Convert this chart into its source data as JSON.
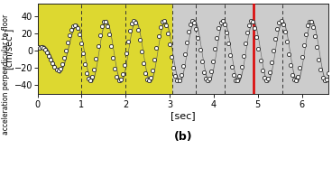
{
  "title": "",
  "xlabel": "[sec]",
  "ylabel": "[cm/sec²]",
  "ylabel2": "acceleration perpendicular to floor",
  "xlim": [
    0,
    6.6
  ],
  "ylim": [
    -50,
    55
  ],
  "yticks": [
    -40,
    -20,
    0,
    20,
    40
  ],
  "xticks": [
    0,
    1,
    2,
    3,
    4,
    5,
    6
  ],
  "yellow_region": [
    0,
    3.05
  ],
  "gray_region": [
    3.05,
    6.6
  ],
  "red_line_x": 4.9,
  "dashed_lines": [
    1.0,
    2.0,
    3.05,
    3.6,
    4.25,
    4.9,
    5.55
  ],
  "label_b": "(b)",
  "bg_color": "#ffffff",
  "yellow_color": "#ddd830",
  "gray_color": "#cccccc",
  "circle_facecolor": "#ffffff",
  "circle_edgecolor": "#222222",
  "band_color": "#555555",
  "red_color": "#dd0000"
}
